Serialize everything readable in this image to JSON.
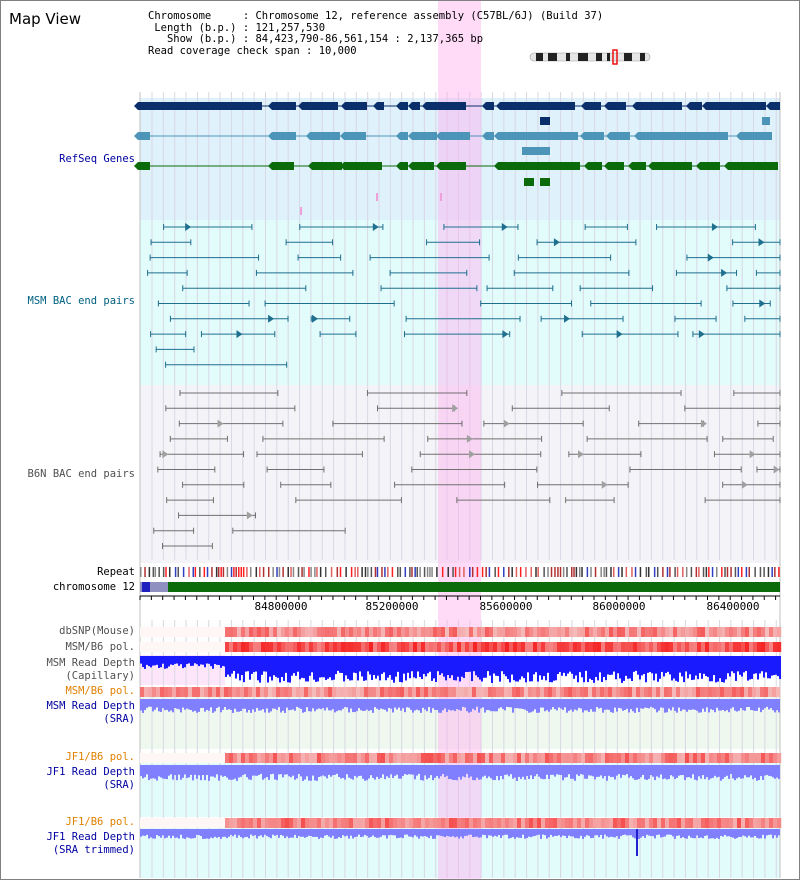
{
  "title": "Map View",
  "info": {
    "chromosome_key": "Chromosome",
    "chromosome_val": "Chromosome 12, reference assembly (C57BL/6J) (Build 37)",
    "length_key": "Length (b.p.)",
    "length_val": "121,257,530",
    "show_key": "Show (b.p.)",
    "show_val": "84,423,790-86,561,154 : 2,137,365 bp",
    "coverage_key": "Read coverage check span",
    "coverage_val": "10,000"
  },
  "tracks": {
    "refseq": "RefSeq Genes",
    "msm_bac": "MSM BAC end pairs",
    "b6n_bac": "B6N BAC end pairs",
    "repeat": "Repeat",
    "chromosome": "chromosome 12",
    "dbsnp": "dbSNP(Mouse)",
    "msm_b6_pol_1": "MSM/B6 pol.",
    "msm_cap_1": "MSM Read Depth",
    "msm_cap_2": "(Capillary)",
    "msm_b6_pol_2": "MSM/B6 pol.",
    "msm_sra_1": "MSM Read Depth",
    "msm_sra_2": "(SRA)",
    "jf1_b6_pol_1": "JF1/B6 pol.",
    "jf1_sra_1": "JF1 Read Depth",
    "jf1_sra_2": "(SRA)",
    "jf1_b6_pol_2": "JF1/B6 pol.",
    "jf1_trim_1": "JF1 Read Depth",
    "jf1_trim_2": "(SRA trimmed)"
  },
  "axis": {
    "ticks": [
      "84800000",
      "85200000",
      "85600000",
      "86000000",
      "86400000"
    ]
  },
  "colors": {
    "label_blue": "#0000a0",
    "label_teal": "#006080",
    "label_gray": "#505050",
    "label_orange": "#e08000",
    "refseq_bg": "#dff1fb",
    "msm_bg": "#e2fbfb",
    "b6n_bg": "#f4f4f8",
    "highlight": "#ffb0f0",
    "gene_navy": "#0b2f6b",
    "gene_steel": "#4d94b9",
    "gene_green": "#0b6b0b",
    "pol_red": "#f03030",
    "depth_blue": "#1a1aff",
    "depth_light": "#8080ff"
  }
}
